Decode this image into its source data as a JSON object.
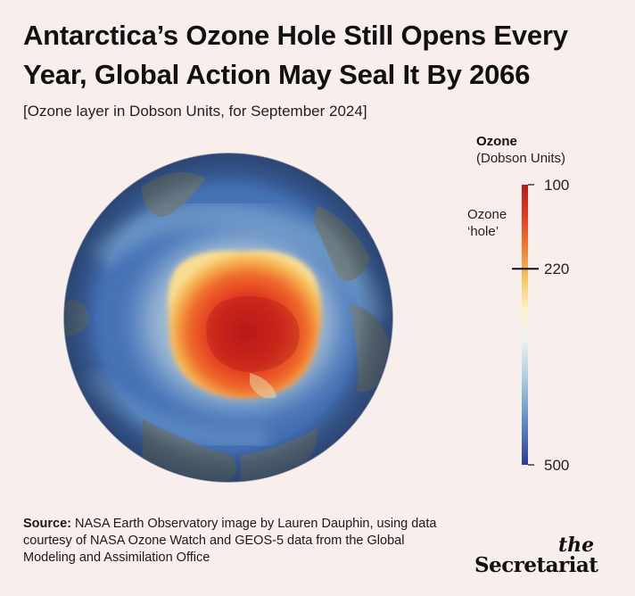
{
  "header": {
    "title": "Antarctica’s Ozone Hole Still Opens Every Year, Global Action May Seal It By 2066",
    "subtitle": "[Ozone layer in Dobson Units, for September 2024]"
  },
  "chart_data": {
    "type": "heatmap",
    "title": "Antarctica’s Ozone Hole Still Opens Every Year, Global Action May Seal It By 2066",
    "subtitle": "[Ozone layer in Dobson Units, for September 2024]",
    "colorbar": {
      "title": "Ozone",
      "unit": "(Dobson Units)",
      "min": 100,
      "max": 500,
      "ticks": [
        100,
        220,
        500
      ],
      "threshold": 220,
      "annotation": "Ozone ‘hole’",
      "annotation_lines": [
        "Ozone",
        "‘hole’"
      ],
      "colors": [
        "#b71c1c",
        "#e53920",
        "#f3792f",
        "#f7c462",
        "#fbf3c4",
        "#eaf3f0",
        "#b8d6e6",
        "#7fa9d3",
        "#4f76be",
        "#283c96"
      ]
    }
  },
  "source": {
    "label": "Source:",
    "text": " NASA Earth Observatory image by Lauren Dauphin, using data courtesy of NASA Ozone Watch and GEOS-5 data from the Global Modeling and Assimilation Office"
  },
  "brand": {
    "line1": "the",
    "line2": "Secretariat"
  }
}
